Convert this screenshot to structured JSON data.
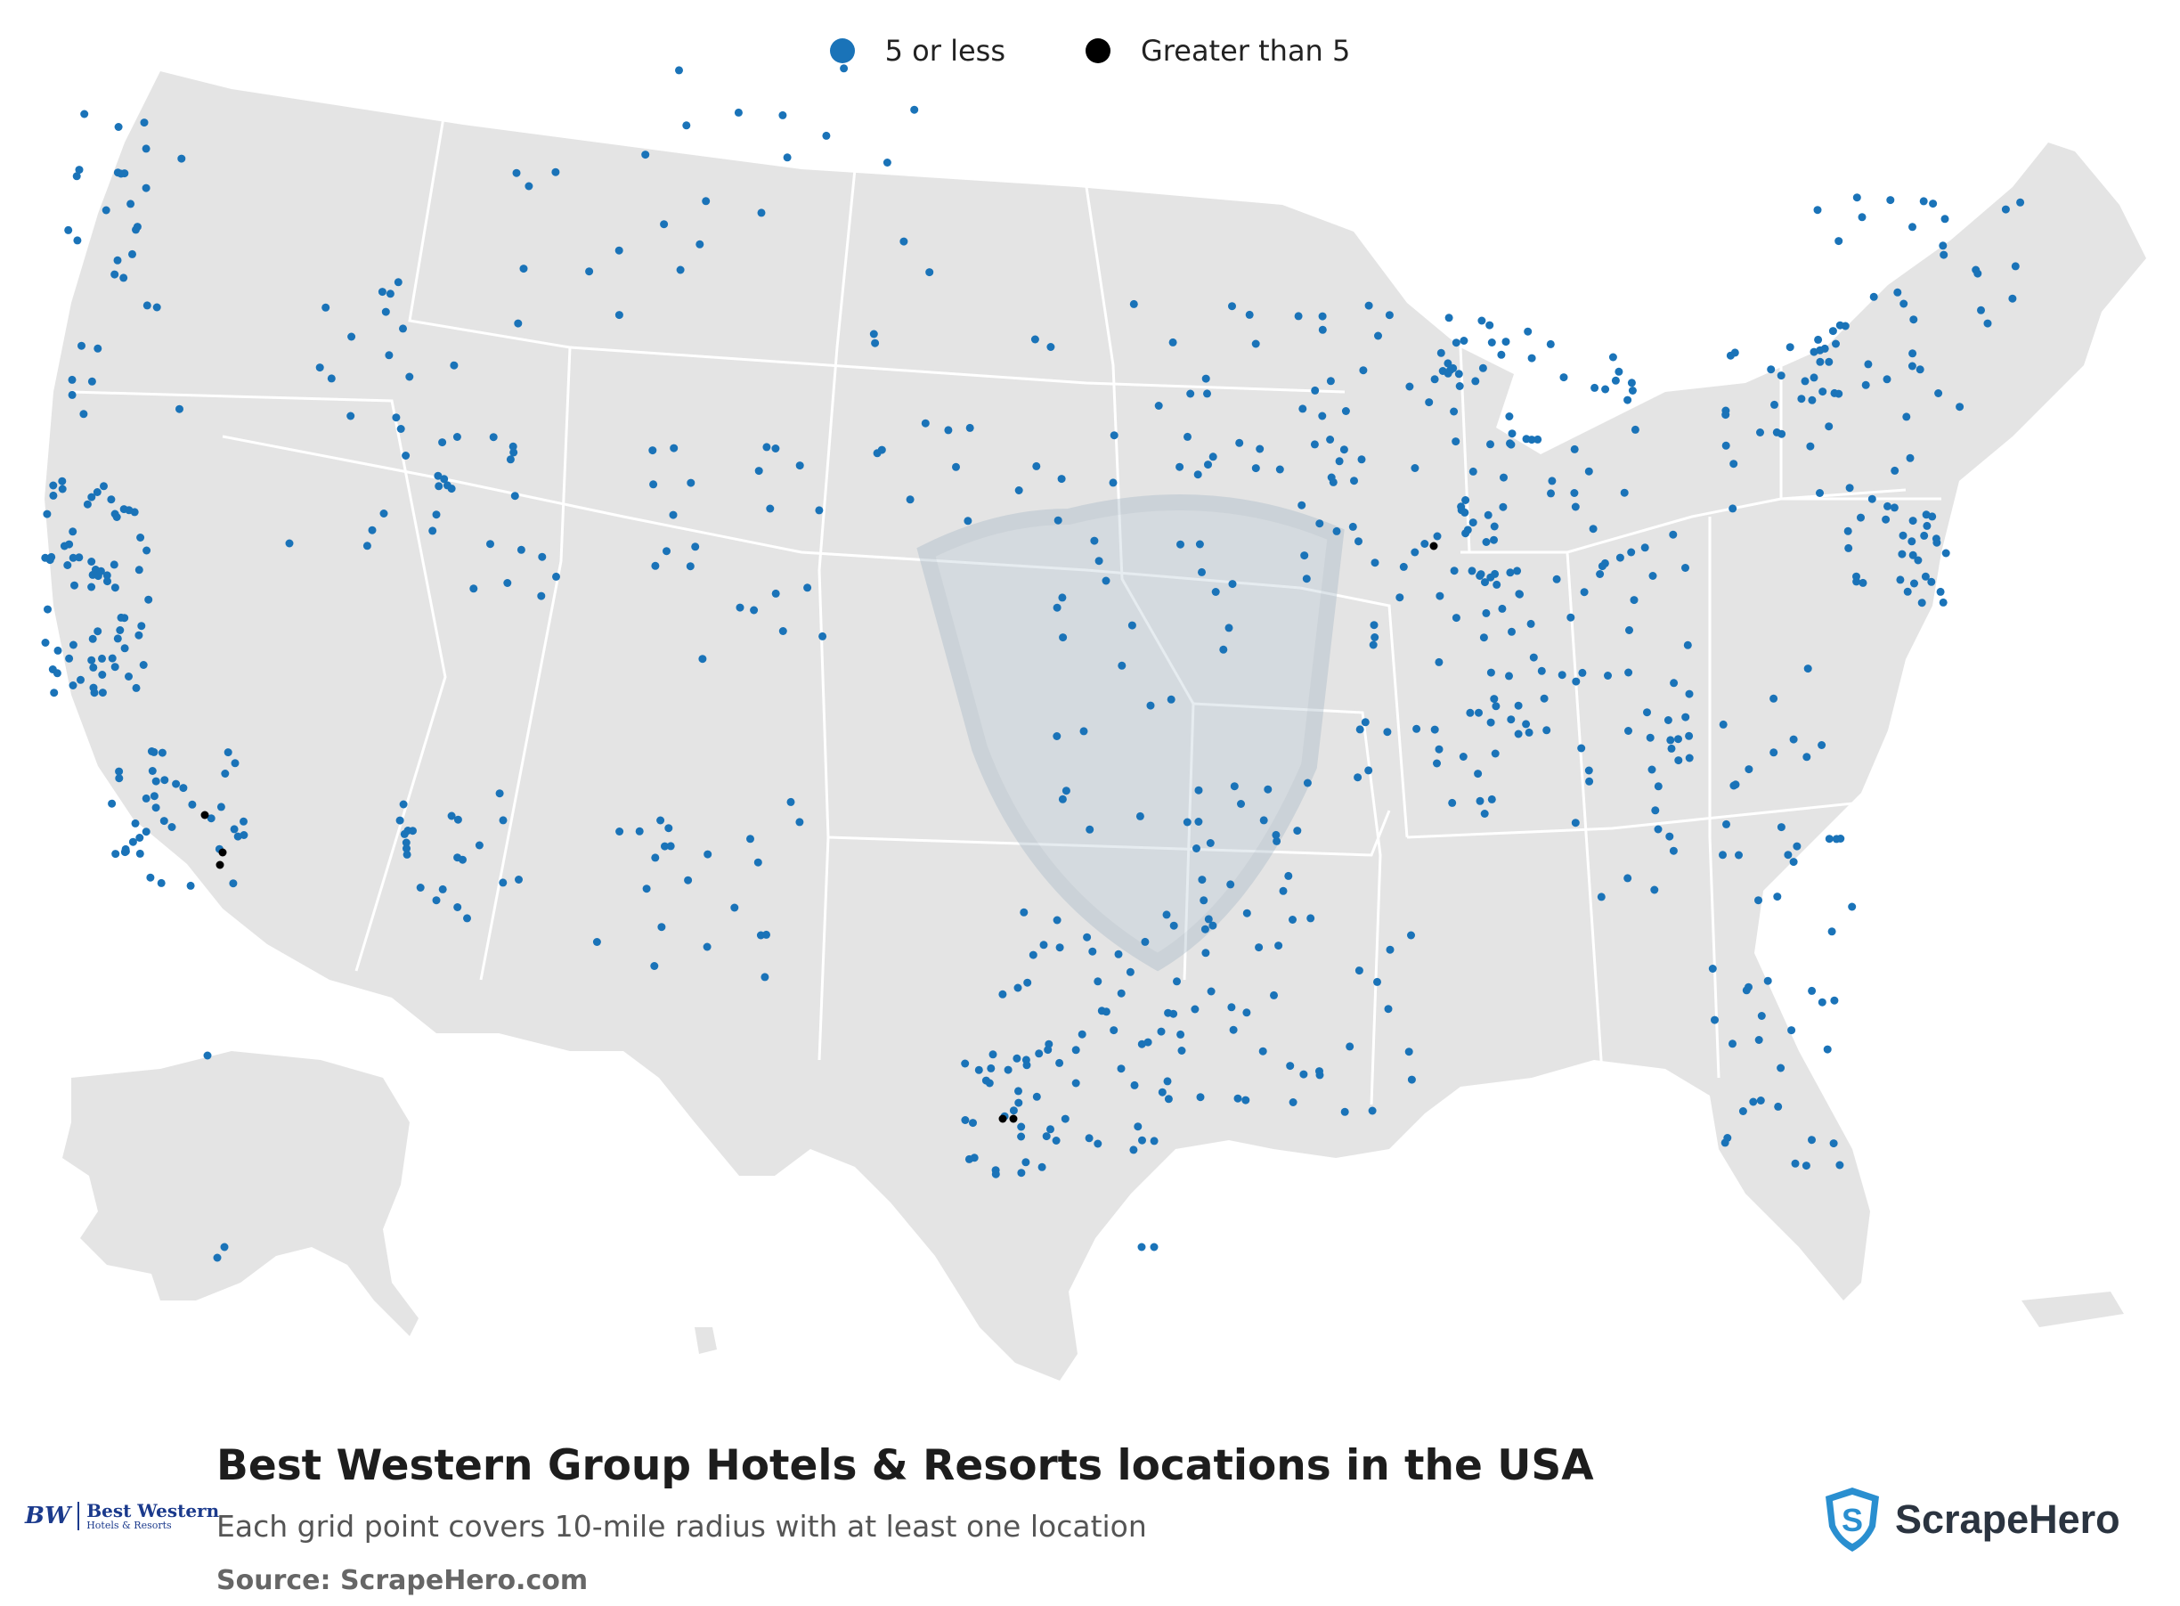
{
  "legend": {
    "items": [
      {
        "label": "5 or less",
        "color": "#1a73b8"
      },
      {
        "label": "Greater than 5",
        "color": "#000000"
      }
    ]
  },
  "footer": {
    "title": "Best Western Group Hotels & Resorts locations in the USA",
    "subtitle": "Each grid point covers 10-mile radius with at least one location",
    "source": "Source: ScrapeHero.com"
  },
  "brand_logo": {
    "mark": "BW",
    "name": "Best Western",
    "sub": "Hotels & Resorts"
  },
  "publisher_logo": {
    "name": "ScrapeHero",
    "icon": "scrapehero-shield-icon"
  },
  "colors": {
    "land": "#e4e4e4",
    "border": "#ffffff",
    "minor_point": "#1a73b8",
    "major_point": "#000000"
  },
  "map": {
    "region": "USA",
    "points_major_count": 7
  }
}
